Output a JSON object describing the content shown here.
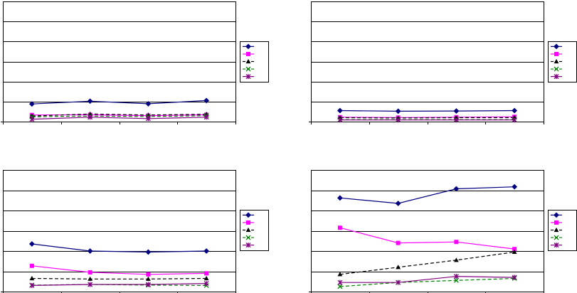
{
  "chart_data": [
    {
      "type": "line",
      "title": "",
      "xlabel": "",
      "ylabel": "",
      "categories": [
        "",
        "",
        "",
        ""
      ],
      "ylim": [
        0,
        6
      ],
      "grid": true,
      "legend_position": "right",
      "series": [
        {
          "values": [
            0.88,
            1.02,
            0.89,
            1.05
          ],
          "color": "#000080",
          "marker": "diamond",
          "dash": "solid"
        },
        {
          "values": [
            0.33,
            0.34,
            0.3,
            0.34
          ],
          "color": "#ff00ff",
          "marker": "square",
          "dash": "solid"
        },
        {
          "values": [
            0.28,
            0.38,
            0.33,
            0.37
          ],
          "color": "#000000",
          "marker": "triangle",
          "dash": "dashed"
        },
        {
          "values": [
            0.24,
            0.28,
            0.25,
            0.3
          ],
          "color": "#008000",
          "marker": "x",
          "dash": "dashed"
        },
        {
          "values": [
            0.12,
            0.22,
            0.15,
            0.22
          ],
          "color": "#800080",
          "marker": "star",
          "dash": "solid"
        }
      ]
    },
    {
      "type": "line",
      "title": "",
      "xlabel": "",
      "ylabel": "",
      "categories": [
        "",
        "",
        "",
        ""
      ],
      "ylim": [
        0,
        6
      ],
      "grid": true,
      "legend_position": "right",
      "series": [
        {
          "values": [
            0.55,
            0.52,
            0.53,
            0.55
          ],
          "color": "#000080",
          "marker": "diamond",
          "dash": "solid"
        },
        {
          "values": [
            0.22,
            0.2,
            0.22,
            0.24
          ],
          "color": "#ff00ff",
          "marker": "square",
          "dash": "solid"
        },
        {
          "values": [
            0.2,
            0.18,
            0.2,
            0.2
          ],
          "color": "#000000",
          "marker": "triangle",
          "dash": "dashed"
        },
        {
          "values": [
            0.1,
            0.1,
            0.1,
            0.1
          ],
          "color": "#008000",
          "marker": "x",
          "dash": "dashed"
        },
        {
          "values": [
            0.08,
            0.08,
            0.08,
            0.08
          ],
          "color": "#800080",
          "marker": "star",
          "dash": "solid"
        }
      ]
    },
    {
      "type": "line",
      "title": "",
      "xlabel": "",
      "ylabel": "",
      "categories": [
        "",
        "",
        "",
        ""
      ],
      "ylim": [
        0,
        6
      ],
      "grid": true,
      "legend_position": "right",
      "series": [
        {
          "values": [
            2.35,
            2.0,
            1.95,
            2.0
          ],
          "color": "#000080",
          "marker": "diamond",
          "dash": "solid"
        },
        {
          "values": [
            1.27,
            0.95,
            0.85,
            0.9
          ],
          "color": "#ff00ff",
          "marker": "square",
          "dash": "solid"
        },
        {
          "values": [
            0.65,
            0.62,
            0.62,
            0.65
          ],
          "color": "#000000",
          "marker": "triangle",
          "dash": "dashed"
        },
        {
          "values": [
            0.32,
            0.35,
            0.32,
            0.3
          ],
          "color": "#008000",
          "marker": "x",
          "dash": "dashed"
        },
        {
          "values": [
            0.3,
            0.35,
            0.35,
            0.4
          ],
          "color": "#800080",
          "marker": "star",
          "dash": "solid"
        }
      ]
    },
    {
      "type": "line",
      "title": "",
      "xlabel": "",
      "ylabel": "",
      "categories": [
        "",
        "",
        "",
        ""
      ],
      "ylim": [
        0,
        6
      ],
      "grid": true,
      "legend_position": "right",
      "series": [
        {
          "values": [
            4.62,
            4.35,
            5.07,
            5.17
          ],
          "color": "#000080",
          "marker": "diamond",
          "dash": "solid"
        },
        {
          "values": [
            3.15,
            2.4,
            2.45,
            2.1
          ],
          "color": "#ff00ff",
          "marker": "square",
          "dash": "solid"
        },
        {
          "values": [
            0.85,
            1.2,
            1.55,
            1.95
          ],
          "color": "#000000",
          "marker": "triangle",
          "dash": "dashed"
        },
        {
          "values": [
            0.25,
            0.45,
            0.55,
            0.65
          ],
          "color": "#008000",
          "marker": "x",
          "dash": "dashed"
        },
        {
          "values": [
            0.45,
            0.45,
            0.75,
            0.7
          ],
          "color": "#800080",
          "marker": "star",
          "dash": "solid"
        }
      ]
    }
  ]
}
